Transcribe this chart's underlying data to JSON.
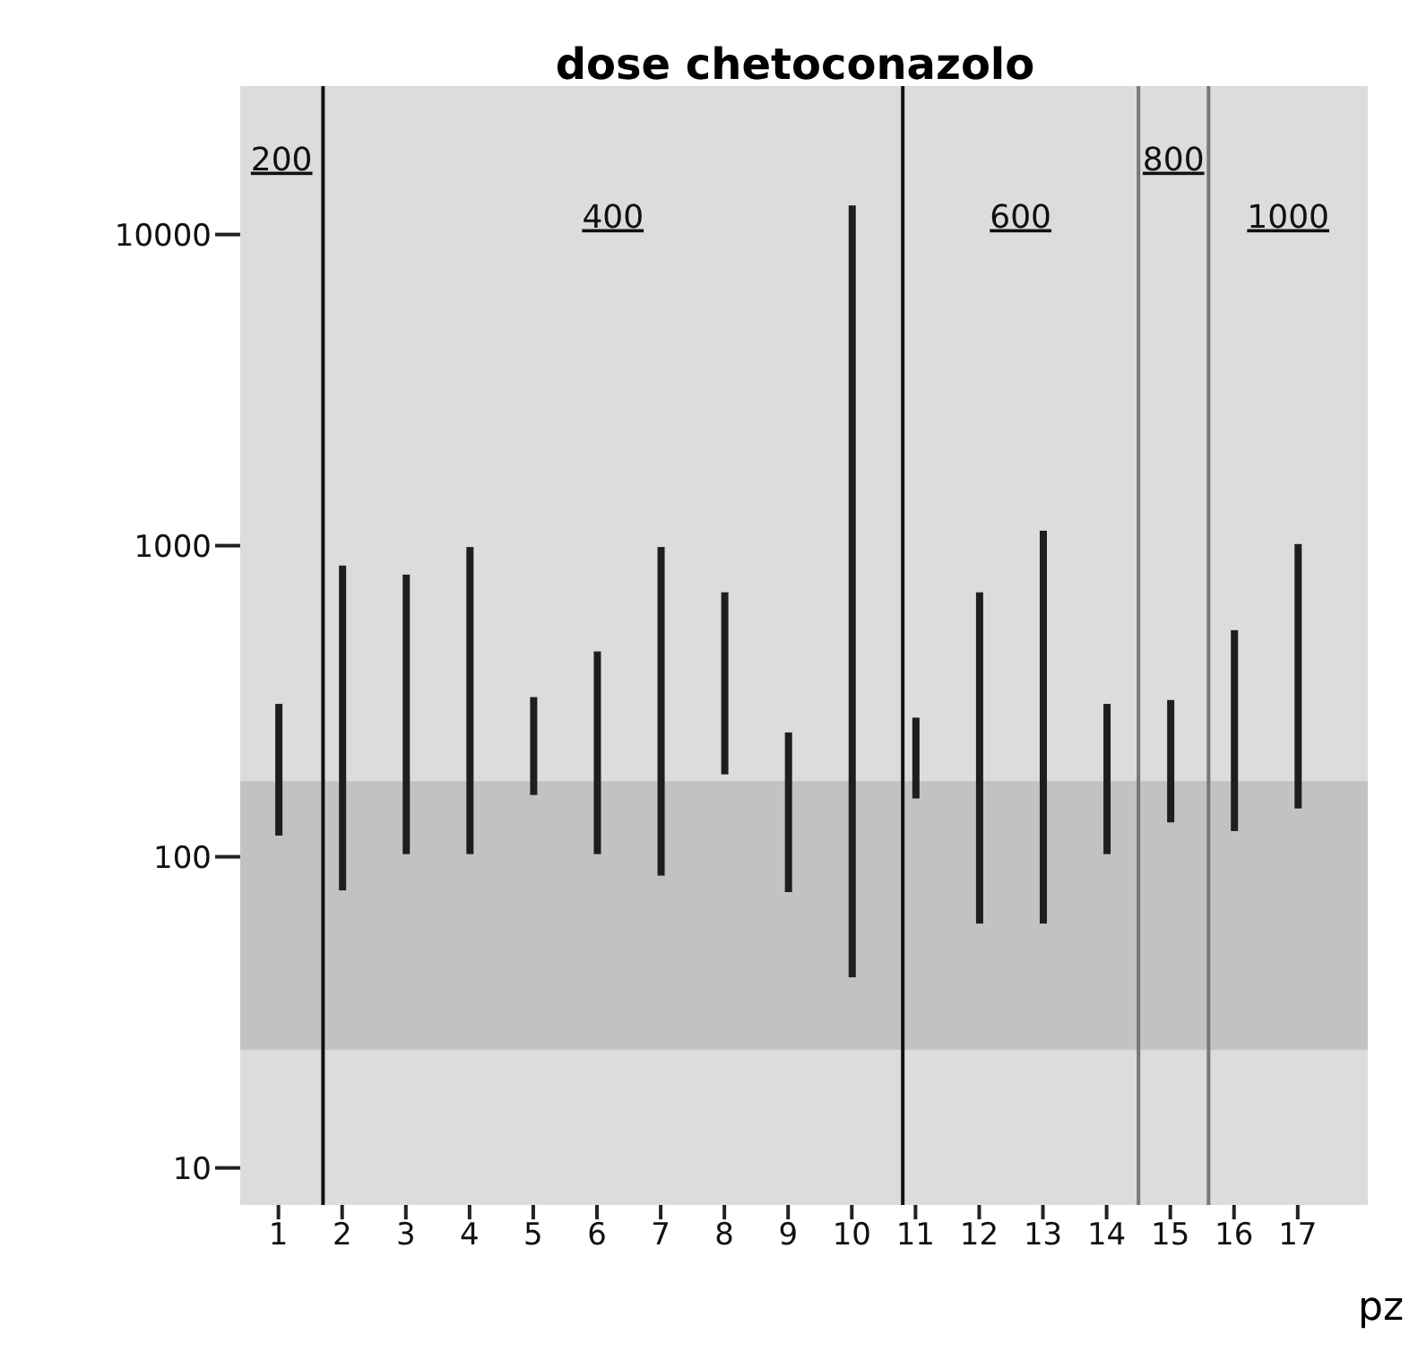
{
  "chart_data": {
    "type": "bar",
    "title": "dose chetoconazolo",
    "xlabel": "pz",
    "x": [
      1,
      2,
      3,
      4,
      5,
      6,
      7,
      8,
      9,
      10,
      11,
      12,
      13,
      14,
      15,
      16,
      17
    ],
    "base": [
      117,
      78,
      102,
      102,
      158,
      102,
      87,
      184,
      77,
      41,
      154,
      61,
      61,
      102,
      129,
      121,
      143
    ],
    "values": [
      193,
      785,
      705,
      888,
      168,
      355,
      903,
      524,
      174,
      12359,
      126,
      647,
      1056,
      208,
      190,
      414,
      869
    ],
    "color": "#1e1e1e",
    "xlim": [
      0.4,
      18.1
    ],
    "xticks": [
      1,
      2,
      3,
      4,
      5,
      6,
      7,
      8,
      9,
      10,
      11,
      12,
      13,
      14,
      15,
      16,
      17
    ],
    "ylim": [
      7.6,
      30000
    ],
    "yticks": [
      10,
      100,
      1000,
      10000
    ],
    "log": true,
    "grid": false,
    "legend": false,
    "ref_lines": [
      {
        "axis": "x",
        "value": 1.7,
        "color": "#111111"
      },
      {
        "axis": "x",
        "value": 10.8,
        "color": "#111111"
      },
      {
        "axis": "x",
        "value": 14.5,
        "color": "#777777"
      },
      {
        "axis": "x",
        "value": 15.6,
        "color": "#777777"
      }
    ],
    "bands": [
      {
        "axis": "y",
        "from": 24,
        "to": 175,
        "color": "#c2c2c2"
      }
    ],
    "annotations": [
      "200",
      "400",
      "600",
      "800",
      "1000"
    ]
  }
}
